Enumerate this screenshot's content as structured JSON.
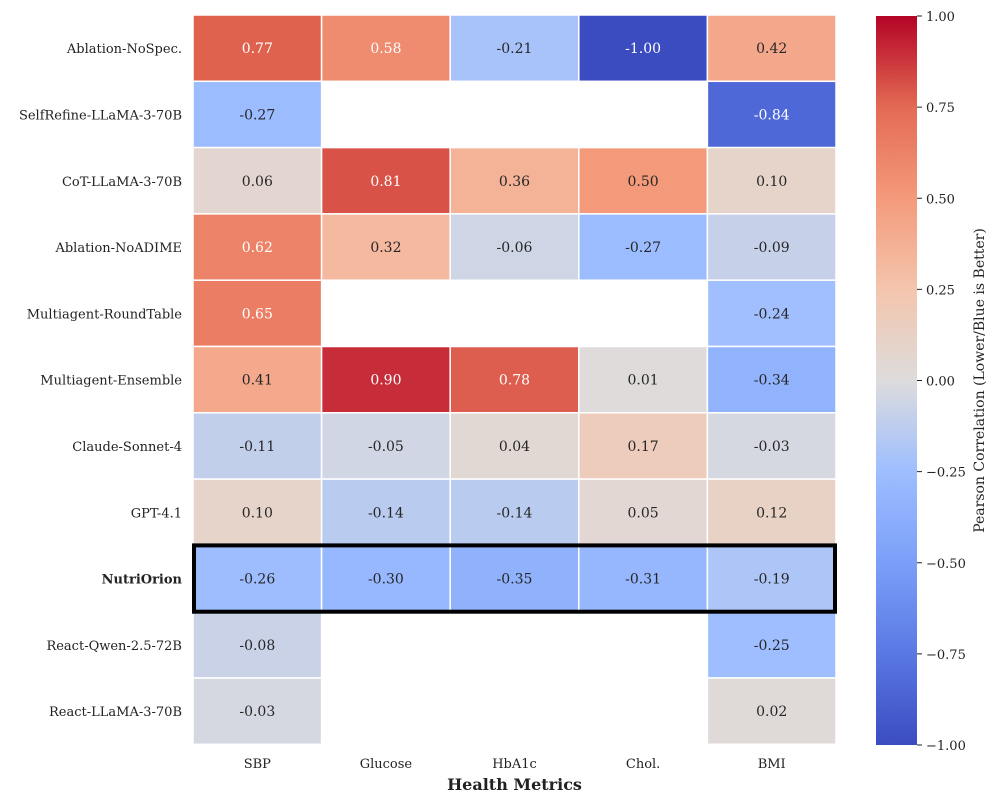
{
  "chart_data": {
    "type": "heatmap",
    "title": "",
    "xlabel": "Health Metrics",
    "ylabel": "",
    "columns": [
      "SBP",
      "Glucose",
      "HbA1c",
      "Chol.",
      "BMI"
    ],
    "rows": [
      "Ablation-NoSpec.",
      "SelfRefine-LLaMA-3-70B",
      "CoT-LLaMA-3-70B",
      "Ablation-NoADIME",
      "Multiagent-RoundTable",
      "Multiagent-Ensemble",
      "Claude-Sonnet-4",
      "GPT-4.1",
      "NutriOrion",
      "React-Qwen-2.5-72B",
      "React-LLaMA-3-70B"
    ],
    "values": [
      [
        0.77,
        0.58,
        -0.21,
        -1.0,
        0.42
      ],
      [
        -0.27,
        null,
        null,
        null,
        -0.84
      ],
      [
        0.06,
        0.81,
        0.36,
        0.5,
        0.1
      ],
      [
        0.62,
        0.32,
        -0.06,
        -0.27,
        -0.09
      ],
      [
        0.65,
        null,
        null,
        null,
        -0.24
      ],
      [
        0.41,
        0.9,
        0.78,
        0.01,
        -0.34
      ],
      [
        -0.11,
        -0.05,
        0.04,
        0.17,
        -0.03
      ],
      [
        0.1,
        -0.14,
        -0.14,
        0.05,
        0.12
      ],
      [
        -0.26,
        -0.3,
        -0.35,
        -0.31,
        -0.19
      ],
      [
        -0.08,
        null,
        null,
        null,
        -0.25
      ],
      [
        -0.03,
        null,
        null,
        null,
        0.02
      ]
    ],
    "highlight_row": "NutriOrion",
    "colorbar": {
      "label": "Pearson Correlation (Lower/Blue is Better)",
      "range": [
        -1.0,
        1.0
      ],
      "ticks": [
        1.0,
        0.75,
        0.5,
        0.25,
        0.0,
        -0.25,
        -0.5,
        -0.75,
        -1.0
      ],
      "tick_labels": [
        "1.00",
        "0.75",
        "0.50",
        "0.25",
        "0.00",
        "−0.25",
        "−0.50",
        "−0.75",
        "−1.00"
      ]
    },
    "colormap": "coolwarm",
    "colors": {
      "low": "#3b4cc0",
      "mid": "#dddddd",
      "high": "#b40426",
      "highlight_border": "#000000",
      "cell_divider": "#ffffff"
    }
  }
}
